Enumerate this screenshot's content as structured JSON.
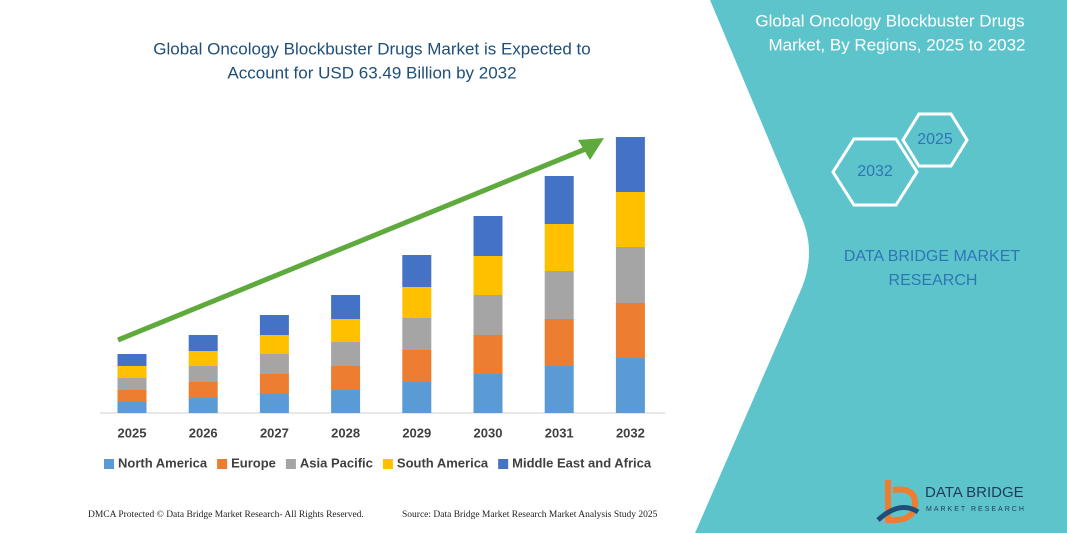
{
  "chart_data": {
    "type": "stacked_bar",
    "title": "Global Oncology Blockbuster Drugs Market is Expected to",
    "title_line2": "Account for USD 63.49 Billion by 2032",
    "categories": [
      "2025",
      "2026",
      "2027",
      "2028",
      "2029",
      "2030",
      "2031",
      "2032"
    ],
    "series": [
      {
        "name": "North America",
        "color": "#5b9bd5",
        "values": [
          11,
          15,
          19,
          23,
          31,
          39,
          47,
          55
        ]
      },
      {
        "name": "Europe",
        "color": "#ed7d31",
        "values": [
          12,
          16,
          20,
          24,
          32,
          39,
          47,
          55
        ]
      },
      {
        "name": "Asia Pacific",
        "color": "#a5a5a5",
        "values": [
          12,
          16,
          20,
          24,
          32,
          40,
          48,
          56
        ]
      },
      {
        "name": "South America",
        "color": "#ffc000",
        "values": [
          12,
          15,
          19,
          23,
          31,
          39,
          47,
          55
        ]
      },
      {
        "name": "Middle East and Africa",
        "color": "#4472c4",
        "values": [
          12,
          16,
          20,
          24,
          32,
          40,
          48,
          55
        ]
      }
    ]
  },
  "panel": {
    "title": "Global Oncology Blockbuster Drugs",
    "title_line2": "Market, By Regions, 2025 to 2032",
    "hex_small": "2025",
    "hex_large": "2032",
    "brand": "DATA BRIDGE MARKET",
    "brand_line2": "RESEARCH"
  },
  "logo": {
    "name": "DATA BRIDGE",
    "tagline": "MARKET RESEARCH"
  },
  "footer": {
    "left": "DMCA Protected © Data Bridge Market Research- All Rights Reserved.",
    "right": "Source: Data Bridge Market Research Market Analysis Study 2025"
  }
}
